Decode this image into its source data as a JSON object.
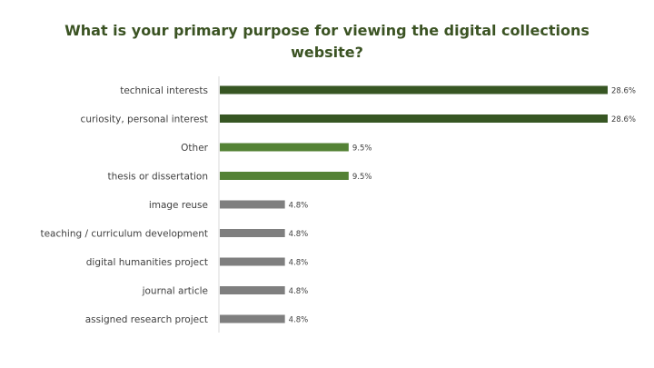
{
  "chart_data": {
    "type": "bar",
    "orientation": "horizontal",
    "title": "What is your primary purpose for viewing the digital collections website?",
    "categories": [
      "technical interests",
      "curiosity, personal interest",
      "Other",
      "thesis or dissertation",
      "image reuse",
      "teaching / curriculum development",
      "digital humanities project",
      "journal article",
      "assigned research project"
    ],
    "values": [
      28.6,
      28.6,
      9.5,
      9.5,
      4.8,
      4.8,
      4.8,
      4.8,
      4.8
    ],
    "value_labels": [
      "28.6%",
      "28.6%",
      "9.5%",
      "9.5%",
      "4.8%",
      "4.8%",
      "4.8%",
      "4.8%",
      "4.8%"
    ],
    "bar_colors": [
      "#375623",
      "#375623",
      "#548235",
      "#548235",
      "#7f7f7f",
      "#7f7f7f",
      "#7f7f7f",
      "#7f7f7f",
      "#7f7f7f"
    ],
    "xlim": [
      0,
      28.6
    ],
    "grid": false,
    "legend": "none",
    "title_color": "#3b5323"
  }
}
